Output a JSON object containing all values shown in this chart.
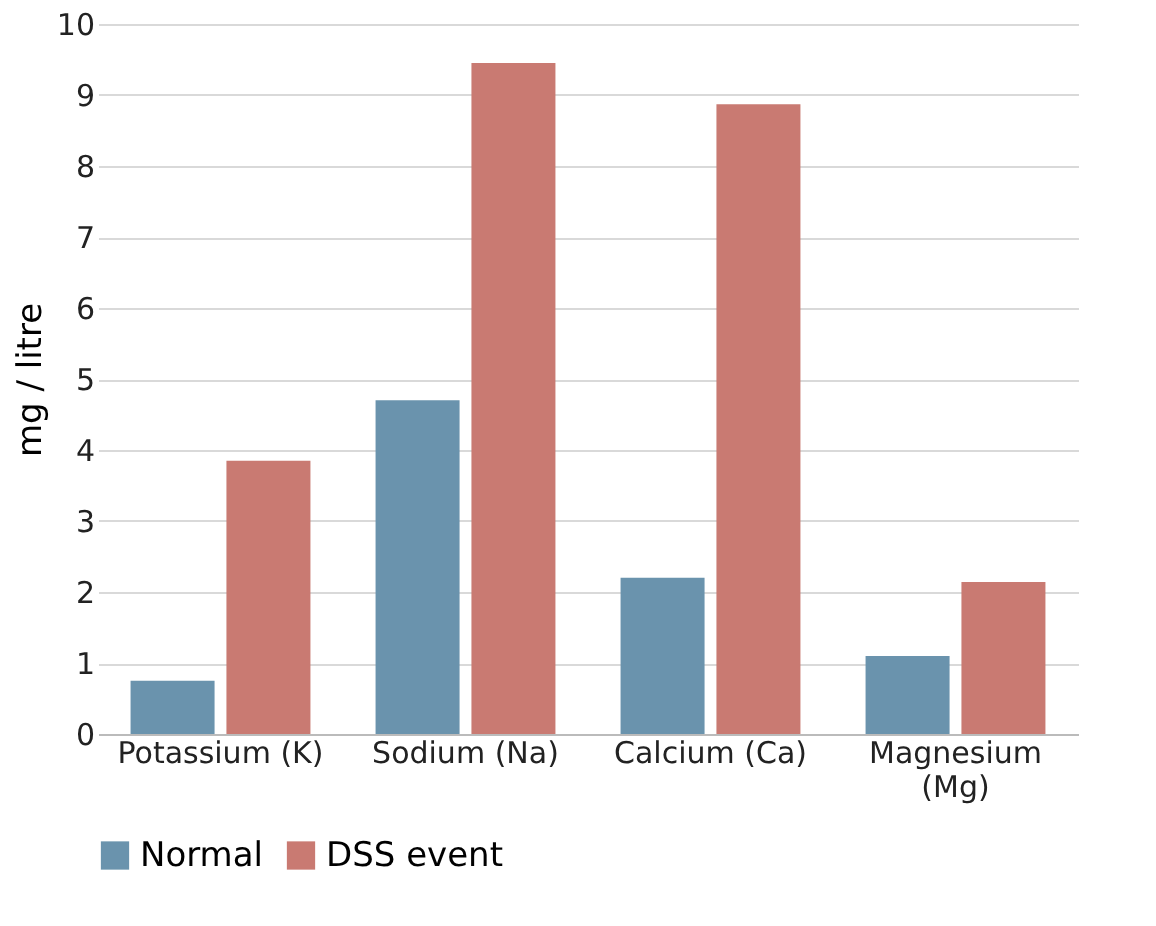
{
  "chart_data": {
    "type": "bar",
    "ylabel": "mg / litre",
    "categories": [
      "Potassium (K)",
      "Sodium (Na)",
      "Calcium (Ca)",
      "Magnesium (Mg)"
    ],
    "series": [
      {
        "name": "Normal",
        "color": "#6a93ad",
        "values": [
          0.75,
          4.7,
          2.2,
          1.1
        ]
      },
      {
        "name": "DSS event",
        "color": "#c97a72",
        "values": [
          3.85,
          9.45,
          8.87,
          2.14
        ]
      }
    ],
    "ylim": [
      0,
      10
    ],
    "yticks": [
      0,
      1,
      2,
      3,
      4,
      5,
      6,
      7,
      8,
      9,
      10
    ],
    "grid": "y",
    "legend": "bottom"
  }
}
